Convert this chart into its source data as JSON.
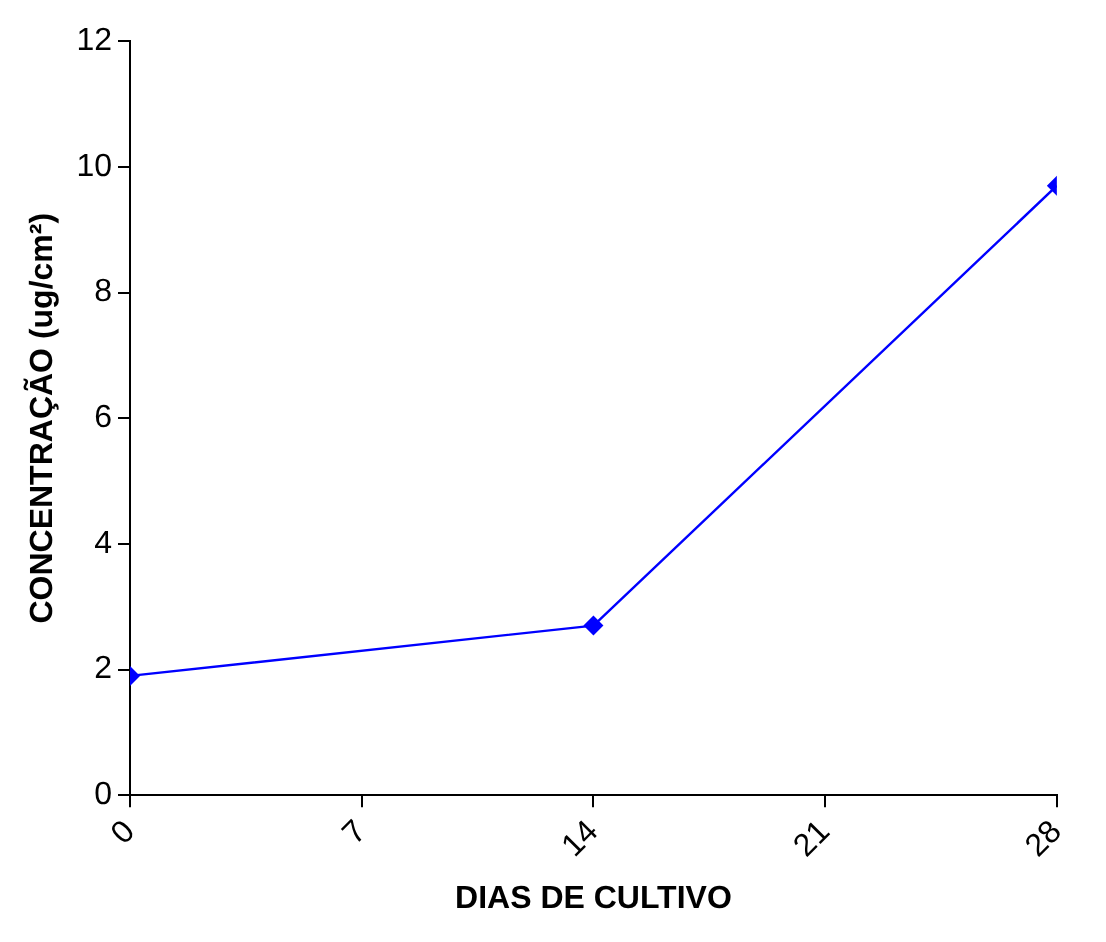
{
  "chart_data": {
    "type": "line",
    "xlabel": "DIAS DE CULTIVO",
    "ylabel": "CONCENTRAÇÃO (ug/cm²)",
    "x": [
      0,
      14,
      28
    ],
    "series": [
      {
        "color": "#0000ff",
        "values": [
          1.9,
          2.7,
          9.7
        ]
      }
    ],
    "xlim": [
      0,
      28
    ],
    "xticks": [
      0,
      7,
      14,
      21,
      28
    ],
    "ylim": [
      0,
      12
    ],
    "yticks": [
      0,
      2,
      4,
      6,
      8,
      10,
      12
    ],
    "marker": "diamond",
    "line_style": "solid",
    "legend": false,
    "grid": false
  }
}
